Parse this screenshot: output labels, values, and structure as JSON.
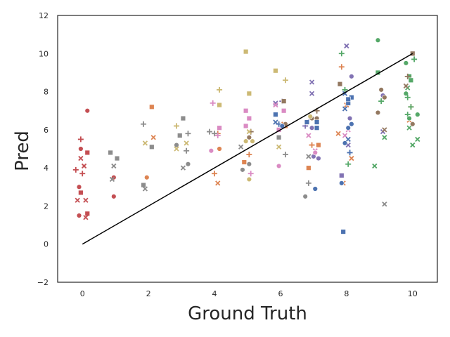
{
  "chart_data": {
    "type": "scatter",
    "xlabel": "Ground Truth",
    "ylabel": "Pred",
    "xlim": [
      -0.75,
      10.75
    ],
    "ylim": [
      -2,
      12
    ],
    "xticks": [
      0,
      2,
      4,
      6,
      8,
      10
    ],
    "yticks": [
      -2,
      0,
      2,
      4,
      6,
      8,
      10,
      12
    ],
    "grid": false,
    "legend": "none",
    "reference_line": {
      "x": [
        0,
        10
      ],
      "y": [
        0,
        10
      ],
      "color": "#000000"
    },
    "series": [
      {
        "color": "#c44e52",
        "points": [
          {
            "x": 0.15,
            "y": 7.0,
            "m": "circle"
          },
          {
            "x": -0.05,
            "y": 5.5,
            "m": "plus"
          },
          {
            "x": -0.05,
            "y": 5.0,
            "m": "circle"
          },
          {
            "x": 0.15,
            "y": 4.8,
            "m": "square"
          },
          {
            "x": -0.05,
            "y": 4.5,
            "m": "cross"
          },
          {
            "x": 0.05,
            "y": 4.1,
            "m": "cross"
          },
          {
            "x": -0.2,
            "y": 3.9,
            "m": "plus"
          },
          {
            "x": 0.0,
            "y": 3.7,
            "m": "plus"
          },
          {
            "x": -0.1,
            "y": 3.0,
            "m": "circle"
          },
          {
            "x": -0.05,
            "y": 2.7,
            "m": "square"
          },
          {
            "x": 0.1,
            "y": 2.3,
            "m": "cross"
          },
          {
            "x": -0.15,
            "y": 2.3,
            "m": "cross"
          },
          {
            "x": -0.1,
            "y": 1.5,
            "m": "circle"
          },
          {
            "x": 0.15,
            "y": 1.6,
            "m": "square"
          },
          {
            "x": 0.1,
            "y": 1.4,
            "m": "cross"
          },
          {
            "x": 0.95,
            "y": 3.5,
            "m": "circle"
          },
          {
            "x": 0.95,
            "y": 2.5,
            "m": "circle"
          }
        ]
      },
      {
        "color": "#dd8452",
        "points": [
          {
            "x": 2.1,
            "y": 7.2,
            "m": "square"
          },
          {
            "x": 2.15,
            "y": 5.6,
            "m": "cross"
          },
          {
            "x": 1.95,
            "y": 3.5,
            "m": "circle"
          },
          {
            "x": 4.1,
            "y": 5.8,
            "m": "plus"
          },
          {
            "x": 4.15,
            "y": 5.0,
            "m": "circle"
          },
          {
            "x": 4.0,
            "y": 3.7,
            "m": "plus"
          },
          {
            "x": 4.1,
            "y": 3.2,
            "m": "cross"
          },
          {
            "x": 4.9,
            "y": 4.3,
            "m": "square"
          },
          {
            "x": 5.05,
            "y": 4.7,
            "m": "plus"
          },
          {
            "x": 6.1,
            "y": 6.3,
            "m": "cross"
          },
          {
            "x": 6.15,
            "y": 6.2,
            "m": "square"
          },
          {
            "x": 6.85,
            "y": 4.0,
            "m": "square"
          },
          {
            "x": 6.95,
            "y": 5.2,
            "m": "plus"
          },
          {
            "x": 7.15,
            "y": 5.2,
            "m": "square"
          },
          {
            "x": 7.85,
            "y": 9.3,
            "m": "plus"
          },
          {
            "x": 8.0,
            "y": 7.3,
            "m": "cross"
          },
          {
            "x": 7.75,
            "y": 5.8,
            "m": "cross"
          },
          {
            "x": 7.9,
            "y": 3.2,
            "m": "cross"
          },
          {
            "x": 8.15,
            "y": 4.5,
            "m": "cross"
          },
          {
            "x": 9.95,
            "y": 7.2,
            "m": "plus"
          },
          {
            "x": 9.9,
            "y": 6.5,
            "m": "cross"
          }
        ]
      },
      {
        "color": "#55a868",
        "points": [
          {
            "x": 8.95,
            "y": 10.7,
            "m": "circle"
          },
          {
            "x": 9.8,
            "y": 9.5,
            "m": "circle"
          },
          {
            "x": 10.05,
            "y": 9.7,
            "m": "plus"
          },
          {
            "x": 9.9,
            "y": 8.8,
            "m": "square"
          },
          {
            "x": 9.95,
            "y": 8.6,
            "m": "square"
          },
          {
            "x": 9.85,
            "y": 8.2,
            "m": "cross"
          },
          {
            "x": 9.8,
            "y": 7.9,
            "m": "circle"
          },
          {
            "x": 9.85,
            "y": 7.7,
            "m": "plus"
          },
          {
            "x": 9.95,
            "y": 7.2,
            "m": "plus"
          },
          {
            "x": 9.85,
            "y": 6.8,
            "m": "plus"
          },
          {
            "x": 9.9,
            "y": 6.6,
            "m": "circle"
          },
          {
            "x": 10.15,
            "y": 6.8,
            "m": "circle"
          },
          {
            "x": 9.9,
            "y": 6.1,
            "m": "cross"
          },
          {
            "x": 10.0,
            "y": 5.2,
            "m": "cross"
          },
          {
            "x": 10.15,
            "y": 5.5,
            "m": "cross"
          },
          {
            "x": 8.95,
            "y": 9.0,
            "m": "square"
          },
          {
            "x": 9.05,
            "y": 7.5,
            "m": "plus"
          },
          {
            "x": 9.15,
            "y": 5.6,
            "m": "cross"
          },
          {
            "x": 8.85,
            "y": 4.1,
            "m": "cross"
          },
          {
            "x": 7.85,
            "y": 10.0,
            "m": "plus"
          },
          {
            "x": 7.95,
            "y": 8.1,
            "m": "plus"
          },
          {
            "x": 8.05,
            "y": 4.2,
            "m": "plus"
          }
        ]
      },
      {
        "color": "#8172b3",
        "points": [
          {
            "x": 8.0,
            "y": 10.4,
            "m": "cross"
          },
          {
            "x": 8.15,
            "y": 8.8,
            "m": "circle"
          },
          {
            "x": 6.95,
            "y": 8.5,
            "m": "cross"
          },
          {
            "x": 6.95,
            "y": 7.9,
            "m": "cross"
          },
          {
            "x": 5.85,
            "y": 7.4,
            "m": "cross"
          },
          {
            "x": 6.05,
            "y": 7.5,
            "m": "plus"
          },
          {
            "x": 6.9,
            "y": 6.6,
            "m": "cross"
          },
          {
            "x": 6.75,
            "y": 6.2,
            "m": "plus"
          },
          {
            "x": 6.95,
            "y": 6.1,
            "m": "circle"
          },
          {
            "x": 7.0,
            "y": 4.6,
            "m": "circle"
          },
          {
            "x": 7.15,
            "y": 4.5,
            "m": "circle"
          },
          {
            "x": 7.85,
            "y": 3.6,
            "m": "square"
          },
          {
            "x": 8.1,
            "y": 6.6,
            "m": "circle"
          },
          {
            "x": 8.05,
            "y": 5.2,
            "m": "cross"
          },
          {
            "x": 9.15,
            "y": 7.7,
            "m": "circle"
          },
          {
            "x": 9.1,
            "y": 7.8,
            "m": "circle"
          },
          {
            "x": 9.1,
            "y": 5.9,
            "m": "cross"
          }
        ]
      },
      {
        "color": "#937860",
        "points": [
          {
            "x": 10.0,
            "y": 10.0,
            "m": "square"
          },
          {
            "x": 9.85,
            "y": 8.8,
            "m": "plus"
          },
          {
            "x": 9.8,
            "y": 8.3,
            "m": "cross"
          },
          {
            "x": 9.05,
            "y": 8.1,
            "m": "circle"
          },
          {
            "x": 9.15,
            "y": 7.7,
            "m": "circle"
          },
          {
            "x": 8.95,
            "y": 6.9,
            "m": "circle"
          },
          {
            "x": 9.15,
            "y": 6.0,
            "m": "cross"
          },
          {
            "x": 10.0,
            "y": 6.3,
            "m": "circle"
          },
          {
            "x": 7.8,
            "y": 8.4,
            "m": "square"
          },
          {
            "x": 7.1,
            "y": 7.0,
            "m": "plus"
          },
          {
            "x": 6.95,
            "y": 6.6,
            "m": "circle"
          },
          {
            "x": 7.1,
            "y": 6.6,
            "m": "circle"
          },
          {
            "x": 6.1,
            "y": 7.5,
            "m": "square"
          },
          {
            "x": 6.15,
            "y": 6.3,
            "m": "circle"
          },
          {
            "x": 5.1,
            "y": 5.9,
            "m": "plus"
          },
          {
            "x": 5.05,
            "y": 5.6,
            "m": "circle"
          }
        ]
      },
      {
        "color": "#8c8c8c",
        "points": [
          {
            "x": 0.85,
            "y": 4.8,
            "m": "square"
          },
          {
            "x": 1.05,
            "y": 4.5,
            "m": "square"
          },
          {
            "x": 0.95,
            "y": 4.1,
            "m": "cross"
          },
          {
            "x": 0.9,
            "y": 3.4,
            "m": "cross"
          },
          {
            "x": 1.85,
            "y": 6.3,
            "m": "plus"
          },
          {
            "x": 2.1,
            "y": 5.1,
            "m": "square"
          },
          {
            "x": 1.85,
            "y": 3.1,
            "m": "square"
          },
          {
            "x": 1.9,
            "y": 2.9,
            "m": "cross"
          },
          {
            "x": 3.05,
            "y": 6.6,
            "m": "square"
          },
          {
            "x": 2.95,
            "y": 5.7,
            "m": "square"
          },
          {
            "x": 3.2,
            "y": 5.8,
            "m": "plus"
          },
          {
            "x": 2.85,
            "y": 5.2,
            "m": "circle"
          },
          {
            "x": 3.15,
            "y": 4.9,
            "m": "plus"
          },
          {
            "x": 3.05,
            "y": 4.0,
            "m": "cross"
          },
          {
            "x": 3.2,
            "y": 4.2,
            "m": "circle"
          },
          {
            "x": 3.85,
            "y": 5.9,
            "m": "plus"
          },
          {
            "x": 4.0,
            "y": 5.8,
            "m": "plus"
          },
          {
            "x": 4.8,
            "y": 5.1,
            "m": "cross"
          },
          {
            "x": 4.85,
            "y": 3.9,
            "m": "circle"
          },
          {
            "x": 5.05,
            "y": 4.2,
            "m": "circle"
          },
          {
            "x": 5.95,
            "y": 5.6,
            "m": "square"
          },
          {
            "x": 6.15,
            "y": 4.7,
            "m": "plus"
          },
          {
            "x": 6.75,
            "y": 2.5,
            "m": "circle"
          },
          {
            "x": 6.85,
            "y": 3.2,
            "m": "plus"
          },
          {
            "x": 6.85,
            "y": 4.6,
            "m": "cross"
          },
          {
            "x": 9.15,
            "y": 2.1,
            "m": "cross"
          }
        ]
      },
      {
        "color": "#da8bc3",
        "points": [
          {
            "x": 3.95,
            "y": 7.4,
            "m": "plus"
          },
          {
            "x": 4.15,
            "y": 6.1,
            "m": "square"
          },
          {
            "x": 4.1,
            "y": 5.7,
            "m": "plus"
          },
          {
            "x": 3.9,
            "y": 4.9,
            "m": "circle"
          },
          {
            "x": 4.95,
            "y": 7.0,
            "m": "square"
          },
          {
            "x": 5.05,
            "y": 6.6,
            "m": "square"
          },
          {
            "x": 4.95,
            "y": 6.2,
            "m": "square"
          },
          {
            "x": 5.1,
            "y": 3.7,
            "m": "plus"
          },
          {
            "x": 5.85,
            "y": 7.3,
            "m": "cross"
          },
          {
            "x": 6.1,
            "y": 7.0,
            "m": "square"
          },
          {
            "x": 5.95,
            "y": 6.0,
            "m": "square"
          },
          {
            "x": 5.95,
            "y": 4.1,
            "m": "circle"
          },
          {
            "x": 6.85,
            "y": 5.7,
            "m": "cross"
          },
          {
            "x": 7.05,
            "y": 4.9,
            "m": "cross"
          },
          {
            "x": 7.05,
            "y": 4.8,
            "m": "circle"
          },
          {
            "x": 7.95,
            "y": 5.7,
            "m": "cross"
          },
          {
            "x": 8.05,
            "y": 6.0,
            "m": "cross"
          }
        ]
      },
      {
        "color": "#ccb974",
        "points": [
          {
            "x": 4.95,
            "y": 10.1,
            "m": "square"
          },
          {
            "x": 4.15,
            "y": 8.1,
            "m": "plus"
          },
          {
            "x": 4.15,
            "y": 7.3,
            "m": "square"
          },
          {
            "x": 5.05,
            "y": 7.9,
            "m": "square"
          },
          {
            "x": 5.05,
            "y": 5.9,
            "m": "cross"
          },
          {
            "x": 4.95,
            "y": 5.4,
            "m": "circle"
          },
          {
            "x": 5.15,
            "y": 5.4,
            "m": "circle"
          },
          {
            "x": 5.05,
            "y": 3.4,
            "m": "circle"
          },
          {
            "x": 5.85,
            "y": 9.1,
            "m": "square"
          },
          {
            "x": 6.15,
            "y": 8.6,
            "m": "plus"
          },
          {
            "x": 5.95,
            "y": 5.1,
            "m": "cross"
          },
          {
            "x": 6.9,
            "y": 6.7,
            "m": "circle"
          },
          {
            "x": 2.85,
            "y": 6.2,
            "m": "plus"
          },
          {
            "x": 1.9,
            "y": 5.3,
            "m": "cross"
          },
          {
            "x": 3.15,
            "y": 5.3,
            "m": "cross"
          },
          {
            "x": 2.85,
            "y": 5.0,
            "m": "cross"
          }
        ]
      },
      {
        "color": "#4c72b0",
        "points": [
          {
            "x": 5.85,
            "y": 6.8,
            "m": "square"
          },
          {
            "x": 5.85,
            "y": 6.4,
            "m": "cross"
          },
          {
            "x": 5.95,
            "y": 6.3,
            "m": "plus"
          },
          {
            "x": 6.05,
            "y": 6.2,
            "m": "circle"
          },
          {
            "x": 6.8,
            "y": 6.4,
            "m": "square"
          },
          {
            "x": 7.1,
            "y": 6.4,
            "m": "square"
          },
          {
            "x": 7.1,
            "y": 6.1,
            "m": "square"
          },
          {
            "x": 7.05,
            "y": 2.9,
            "m": "circle"
          },
          {
            "x": 7.95,
            "y": 7.9,
            "m": "cross"
          },
          {
            "x": 8.05,
            "y": 7.4,
            "m": "square"
          },
          {
            "x": 8.15,
            "y": 7.7,
            "m": "square"
          },
          {
            "x": 8.05,
            "y": 7.6,
            "m": "square"
          },
          {
            "x": 7.95,
            "y": 7.1,
            "m": "cross"
          },
          {
            "x": 8.15,
            "y": 6.3,
            "m": "circle"
          },
          {
            "x": 8.05,
            "y": 6.1,
            "m": "circle"
          },
          {
            "x": 8.05,
            "y": 5.5,
            "m": "cross"
          },
          {
            "x": 7.95,
            "y": 5.3,
            "m": "circle"
          },
          {
            "x": 8.1,
            "y": 4.8,
            "m": "plus"
          },
          {
            "x": 7.85,
            "y": 3.2,
            "m": "circle"
          },
          {
            "x": 7.9,
            "y": 0.65,
            "m": "square"
          }
        ]
      }
    ]
  }
}
